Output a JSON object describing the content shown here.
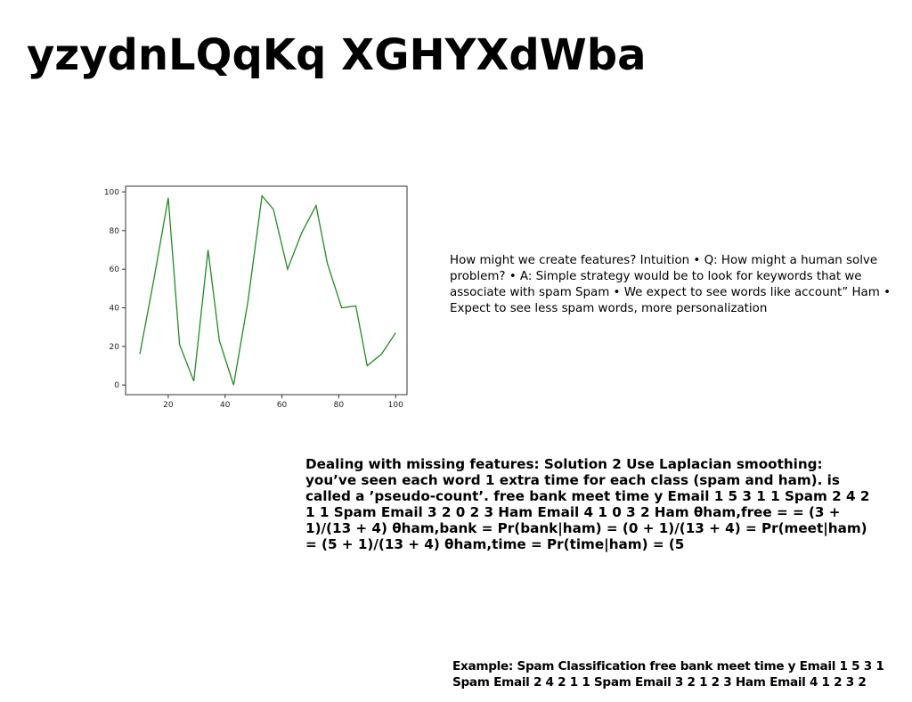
{
  "slide": {
    "title": "yzydnLQqKq XGHYXdWba",
    "features_text": "How might we create features? Intuition • Q: How might a human solve problem? • A: Simple strategy would be to look for keywords that we associate with spam Spam • We expect to see words like account” Ham • Expect to see less spam words, more personalization",
    "missing_text": "Dealing with missing features: Solution 2 Use Laplacian smoothing: you’ve seen each word 1 extra time for each class (spam and ham). is called a ’pseudo-count’. free bank meet time y Email 1 5 3 1 1 Spam 2 4 2 1 1 Spam Email 3 2 0 2 3 Ham Email 4 1 0 3 2 Ham θham,free = = (3 + 1)/(13 + 4) θham,bank = Pr(bank|ham) = (0 + 1)/(13 + 4) = Pr(meet|ham) = (5 + 1)/(13 + 4) θham,time = Pr(time|ham) = (5",
    "example_text": "Example: Spam Classification free bank meet time y Email 1 5 3 1 Spam Email 2 4 2 1 1 Spam Email 3 2 1 2 3 Ham Email 4 1 2 3 2"
  },
  "chart_data": {
    "type": "line",
    "x": [
      10,
      15,
      20,
      24,
      29,
      34,
      38,
      43,
      48,
      53,
      57,
      62,
      67,
      72,
      76,
      81,
      86,
      90,
      95,
      100
    ],
    "series": [
      {
        "values": [
          16,
          55,
          97,
          21,
          2,
          70,
          23,
          0,
          43,
          98,
          91,
          60,
          79,
          93,
          63,
          40,
          41,
          10,
          16,
          27
        ],
        "color": "#228b22"
      }
    ],
    "xlim": [
      5,
      104
    ],
    "ylim": [
      -5,
      103
    ],
    "xticks": [
      20,
      40,
      60,
      80,
      100
    ],
    "yticks": [
      0,
      20,
      40,
      60,
      80,
      100
    ],
    "grid": false
  }
}
